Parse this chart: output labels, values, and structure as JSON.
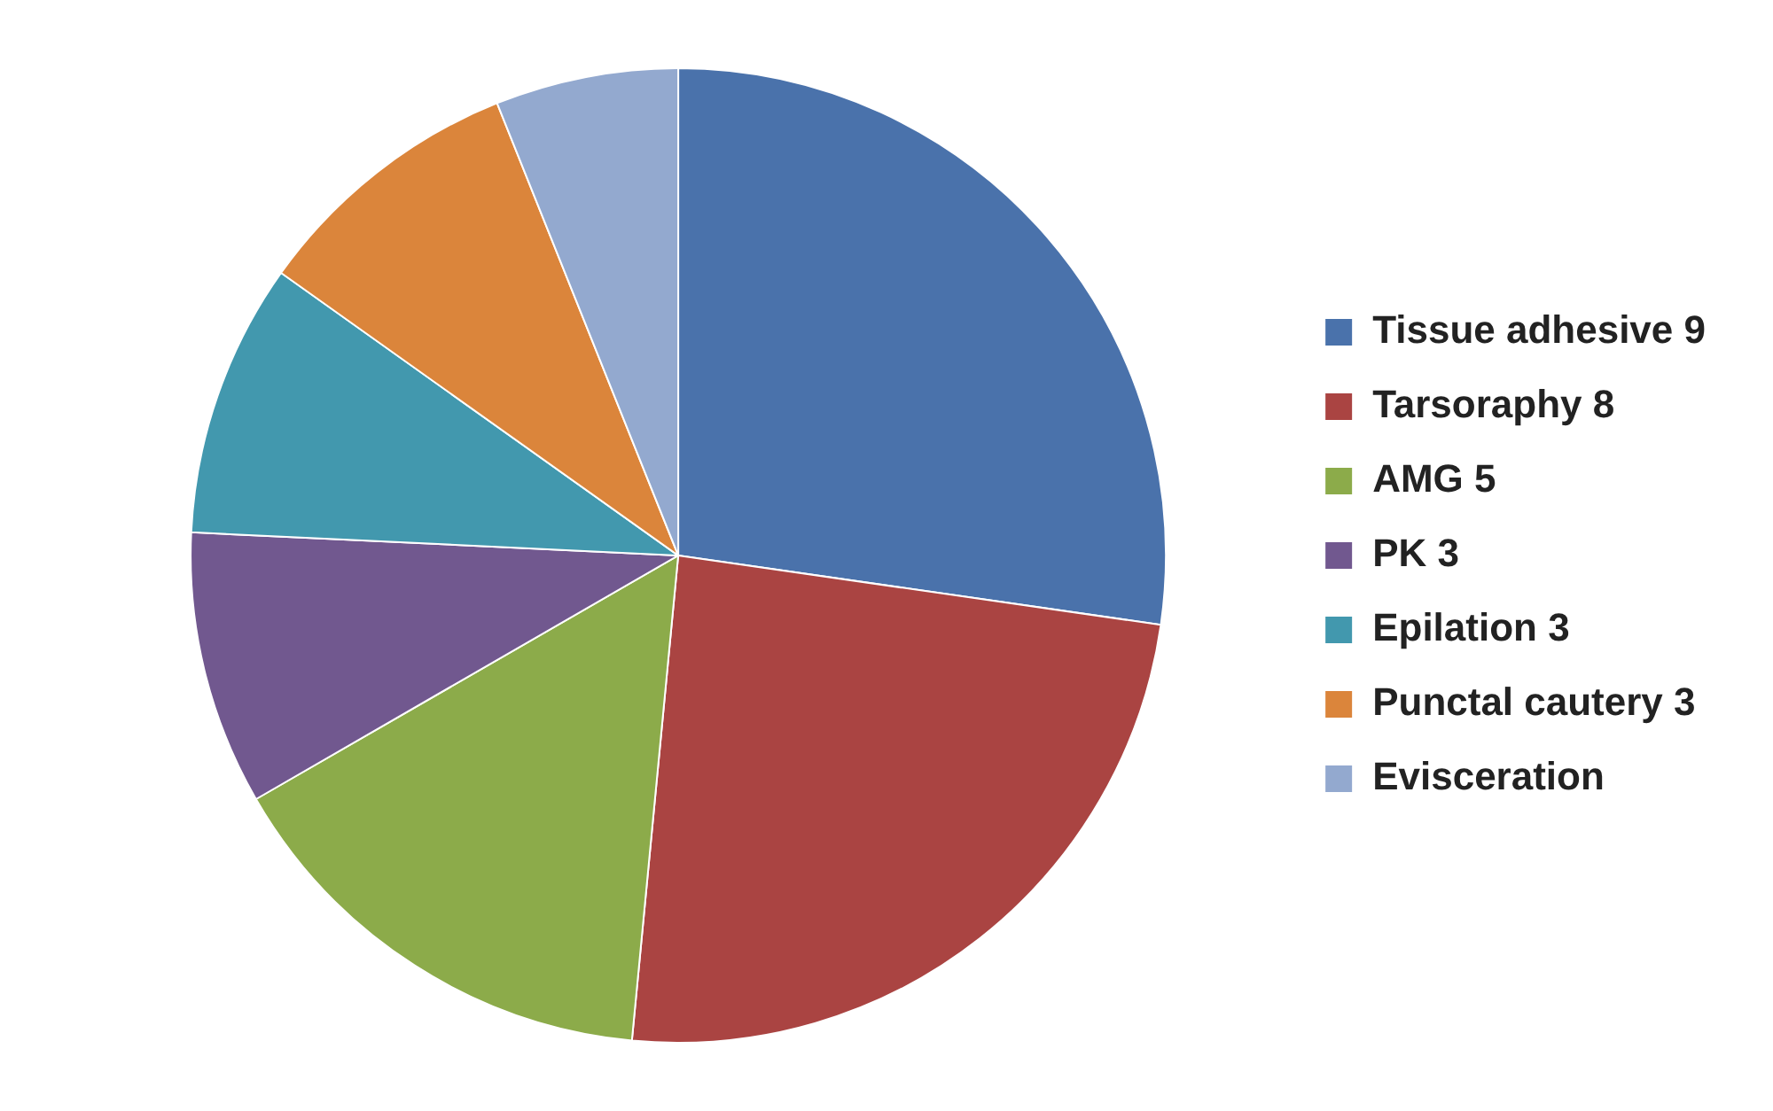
{
  "chart_data": {
    "type": "pie",
    "categories": [
      "Tissue adhesive 9",
      "Tarsoraphy 8",
      "AMG 5",
      "PK 3",
      "Epilation 3",
      "Punctal cautery 3",
      "Evisceration"
    ],
    "values": [
      9,
      8,
      5,
      3,
      3,
      3,
      2
    ],
    "colors": [
      "#4a72ab",
      "#aa4442",
      "#8cab4a",
      "#71588f",
      "#4298ae",
      "#db853b",
      "#93a9cf"
    ],
    "legend": "right"
  }
}
